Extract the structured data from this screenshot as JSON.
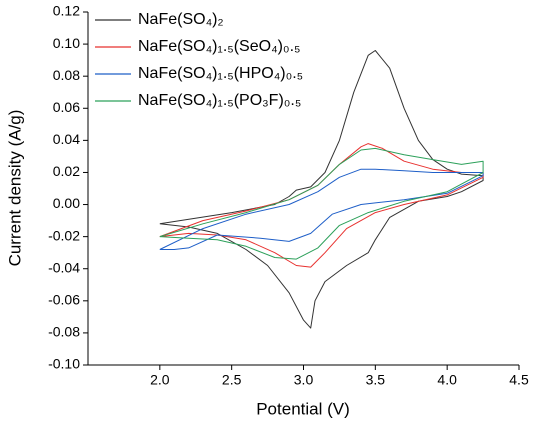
{
  "chart_data": {
    "type": "line",
    "x_label": "Potential (V)",
    "y_label": "Current density (A/g)",
    "xlim": [
      1.5,
      4.5
    ],
    "xticks": [
      {
        "value": 2,
        "label": "2.0"
      },
      2.5,
      {
        "value": 3,
        "label": "3.0"
      },
      3.5,
      {
        "value": 4,
        "label": "4.0"
      },
      4.5
    ],
    "ylim": [
      -0.1,
      0.12
    ],
    "yticks": [
      {
        "value": -0.1,
        "label": "-0.10"
      },
      -0.08,
      -0.06,
      -0.04,
      -0.02,
      {
        "value": 0,
        "label": "0.00"
      },
      0.02,
      0.04,
      0.06,
      0.08,
      {
        "value": 0.1,
        "label": "0.10"
      },
      0.12
    ],
    "legend": "upper-left",
    "series": [
      {
        "name": "NaFe(SO₄)₂",
        "color": "#333333",
        "x": [
          2.0,
          2.5,
          2.8,
          2.9,
          2.95,
          3.05,
          3.15,
          3.25,
          3.35,
          3.45,
          3.5,
          3.6,
          3.7,
          3.8,
          3.9,
          4.0,
          4.1,
          4.25,
          4.25,
          4.1,
          4.0,
          3.8,
          3.6,
          3.5,
          3.45,
          3.3,
          3.15,
          3.08,
          3.05,
          3.0,
          2.9,
          2.75,
          2.6,
          2.4,
          2.2,
          2.0
        ],
        "values": [
          -0.012,
          -0.005,
          0.0,
          0.005,
          0.009,
          0.011,
          0.02,
          0.04,
          0.07,
          0.093,
          0.096,
          0.085,
          0.06,
          0.04,
          0.028,
          0.022,
          0.019,
          0.018,
          0.015,
          0.008,
          0.005,
          0.002,
          -0.008,
          -0.022,
          -0.03,
          -0.038,
          -0.048,
          -0.06,
          -0.077,
          -0.072,
          -0.055,
          -0.038,
          -0.028,
          -0.018,
          -0.014,
          -0.012
        ]
      },
      {
        "name": "NaFe(SO₄)₁.₅(SeO₄)₀.₅",
        "color": "#e8312f",
        "x": [
          2.0,
          2.3,
          2.6,
          2.9,
          3.1,
          3.25,
          3.4,
          3.45,
          3.55,
          3.7,
          3.9,
          4.1,
          4.25,
          4.25,
          4.0,
          3.7,
          3.5,
          3.3,
          3.15,
          3.05,
          2.95,
          2.8,
          2.6,
          2.4,
          2.2,
          2.0
        ],
        "values": [
          -0.02,
          -0.01,
          -0.004,
          0.003,
          0.012,
          0.025,
          0.036,
          0.038,
          0.035,
          0.027,
          0.022,
          0.02,
          0.02,
          0.017,
          0.006,
          0.0,
          -0.005,
          -0.015,
          -0.03,
          -0.039,
          -0.038,
          -0.03,
          -0.022,
          -0.019,
          -0.018,
          -0.02
        ]
      },
      {
        "name": "NaFe(SO₄)₁.₅(HPO₄)₀.₅",
        "color": "#1f5fc8",
        "x": [
          2.0,
          2.3,
          2.6,
          2.9,
          3.1,
          3.25,
          3.4,
          3.5,
          3.7,
          3.9,
          4.1,
          4.25,
          4.25,
          4.0,
          3.7,
          3.4,
          3.2,
          3.05,
          2.9,
          2.7,
          2.4,
          2.2,
          2.1,
          2.0
        ],
        "values": [
          -0.028,
          -0.015,
          -0.006,
          0.0,
          0.008,
          0.017,
          0.022,
          0.022,
          0.021,
          0.02,
          0.02,
          0.02,
          0.018,
          0.007,
          0.003,
          0.0,
          -0.006,
          -0.018,
          -0.023,
          -0.021,
          -0.019,
          -0.027,
          -0.028,
          -0.028
        ]
      },
      {
        "name": "NaFe(SO₄)₁.₅(PO₃F)₀.₅",
        "color": "#2ca05a",
        "x": [
          2.0,
          2.3,
          2.6,
          2.9,
          3.1,
          3.25,
          3.4,
          3.5,
          3.7,
          3.9,
          4.1,
          4.25,
          4.25,
          4.0,
          3.7,
          3.45,
          3.25,
          3.1,
          2.95,
          2.8,
          2.6,
          2.4,
          2.2,
          2.0
        ],
        "values": [
          -0.02,
          -0.012,
          -0.005,
          0.003,
          0.012,
          0.025,
          0.034,
          0.035,
          0.031,
          0.028,
          0.025,
          0.027,
          0.02,
          0.008,
          0.002,
          -0.005,
          -0.013,
          -0.027,
          -0.034,
          -0.033,
          -0.026,
          -0.022,
          -0.021,
          -0.02
        ]
      }
    ]
  }
}
